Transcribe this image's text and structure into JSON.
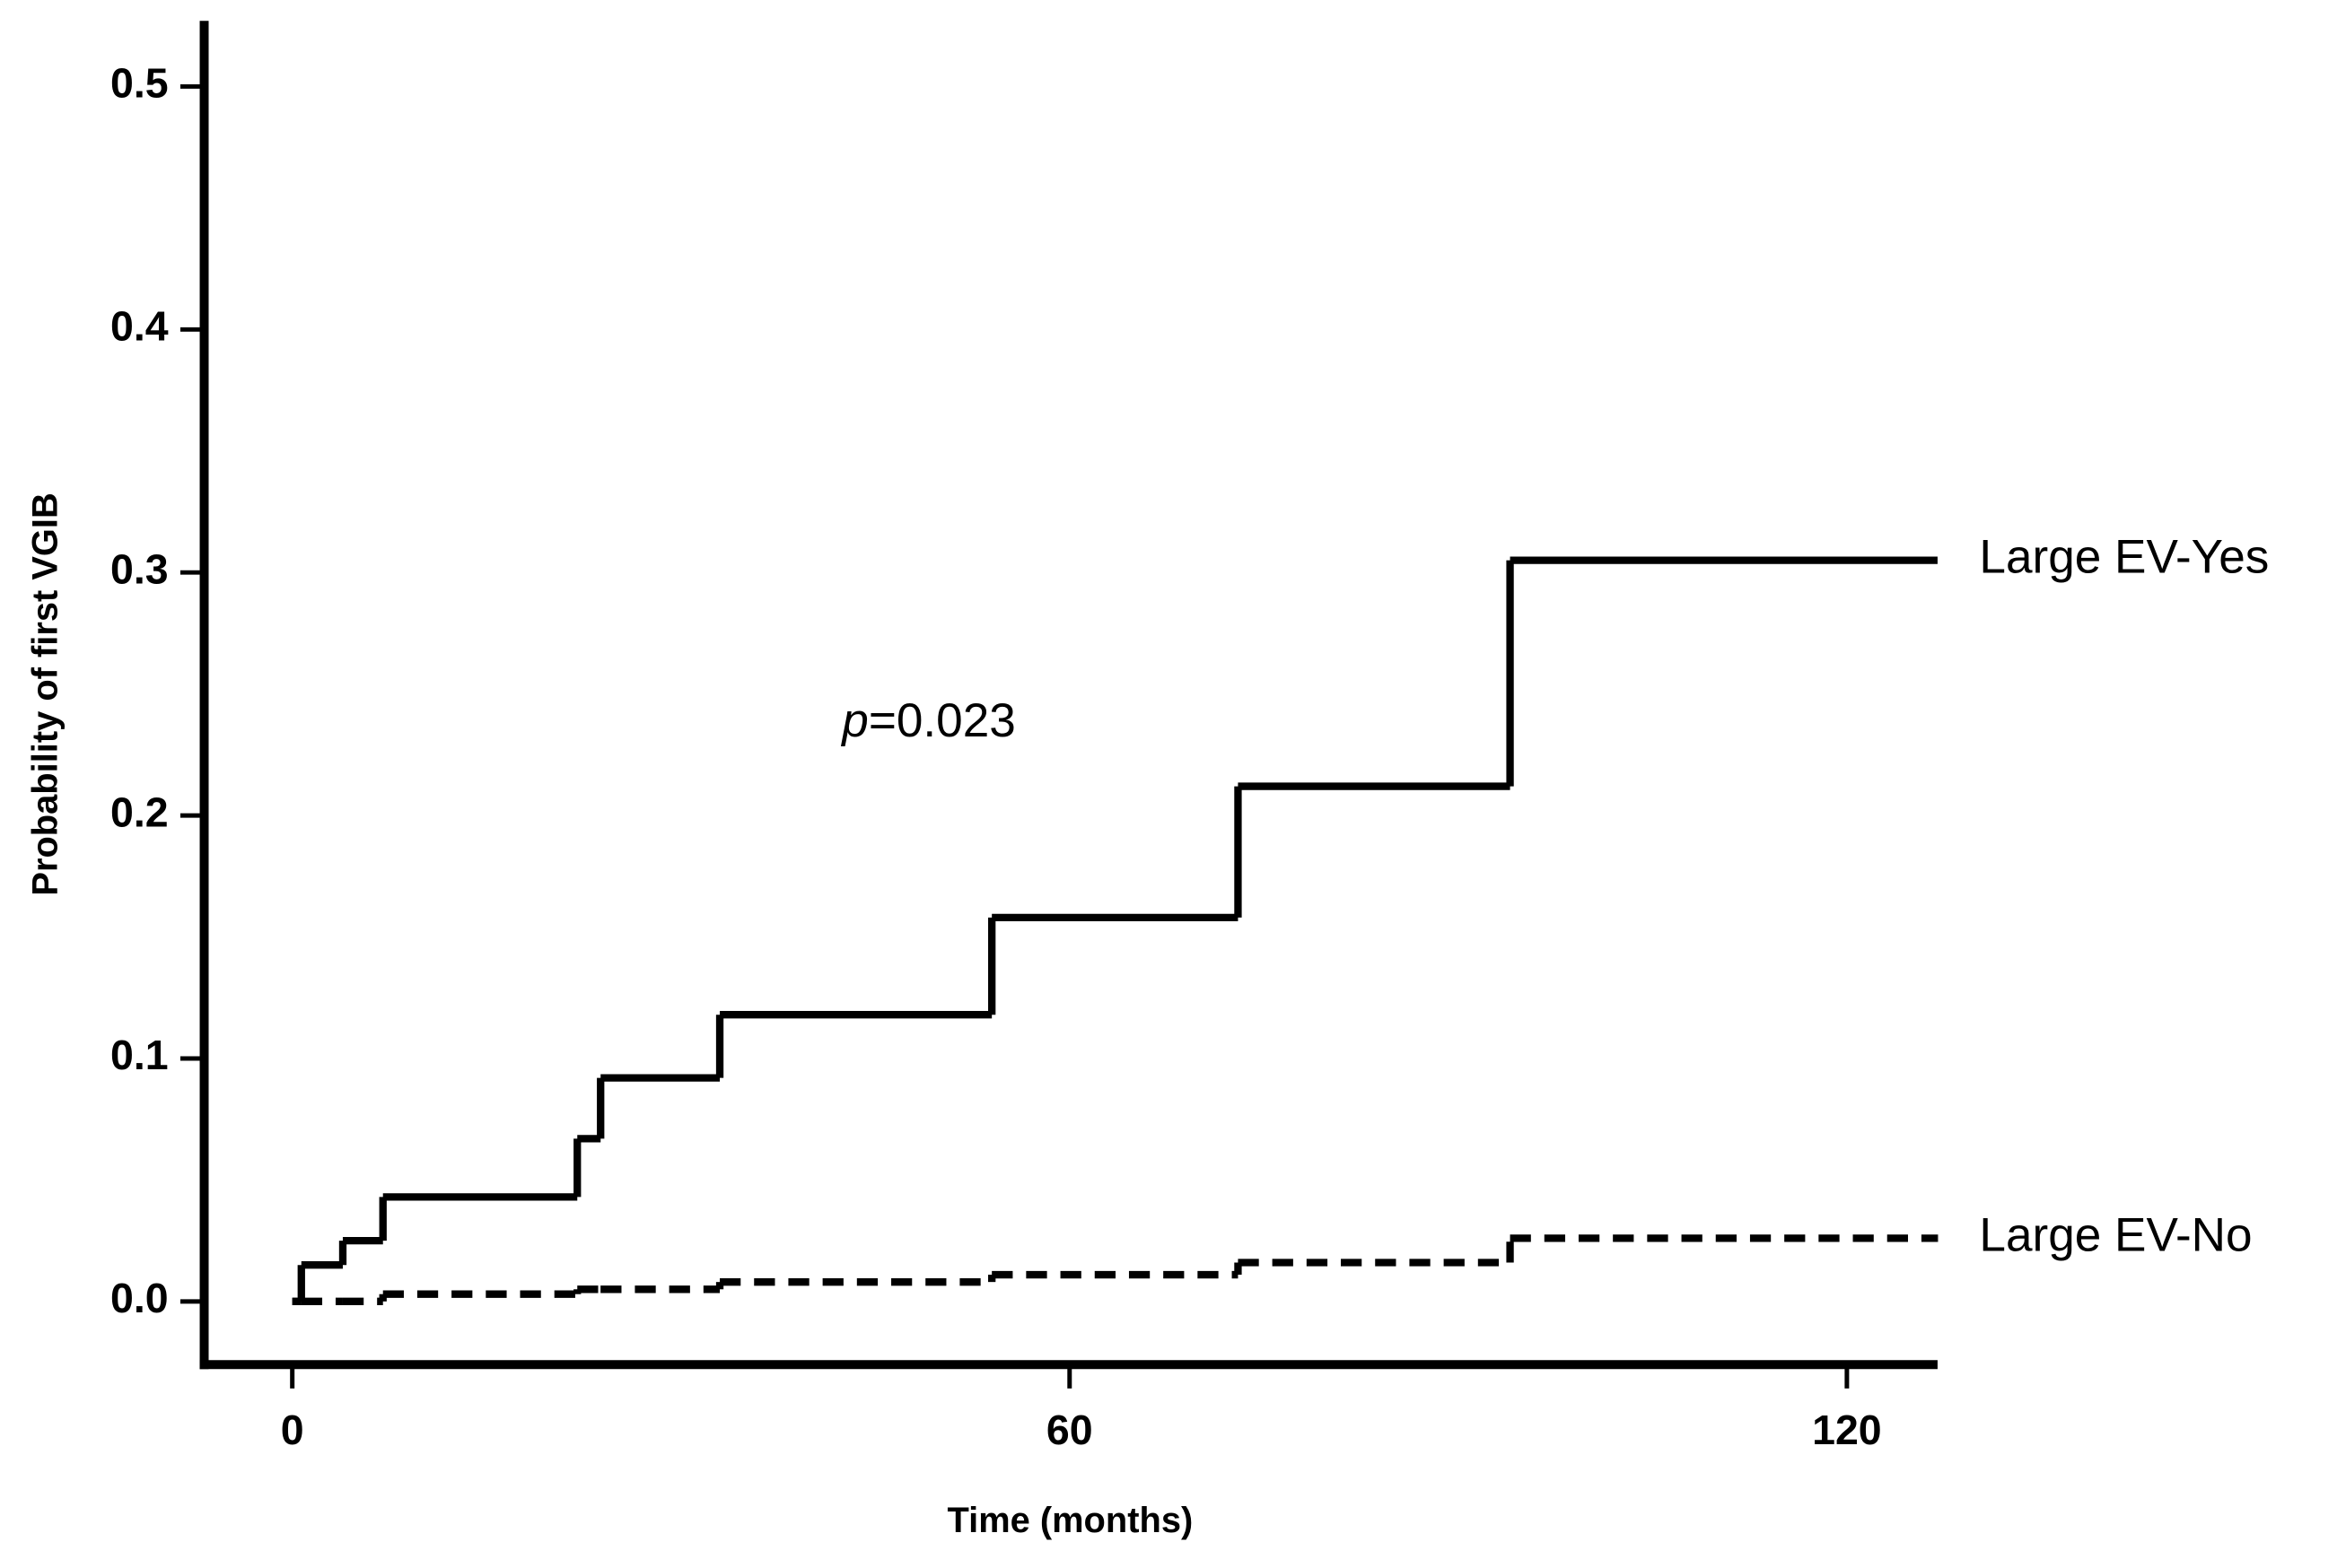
{
  "chart_data": {
    "type": "step",
    "x_label": "Time (months)",
    "y_label": "Probability of first VGIB",
    "annotation": [
      "p",
      "=0.023"
    ],
    "x": [
      0,
      0.7,
      3.9,
      7,
      22,
      23.8,
      33,
      54,
      73,
      94,
      127
    ],
    "series": [
      {
        "name": "Large EV-Yes",
        "color": "#000000",
        "dash": false,
        "values": [
          0,
          0.015,
          0.025,
          0.043,
          0.067,
          0.092,
          0.118,
          0.158,
          0.212,
          0.305,
          0.305
        ]
      },
      {
        "name": "Large EV-No",
        "color": "#000000",
        "dash": true,
        "values": [
          0,
          0,
          0,
          0.003,
          0.005,
          0.005,
          0.008,
          0.011,
          0.016,
          0.026,
          0.026
        ]
      }
    ],
    "xlim": [
      -6.8,
      127
    ],
    "ylim": [
      -0.026,
      0.527
    ],
    "xticks": [
      0,
      60,
      120
    ],
    "yticks": [
      {
        "value": 0,
        "label": "0.0"
      },
      0.1,
      0.2,
      0.3,
      0.4,
      0.5
    ]
  }
}
